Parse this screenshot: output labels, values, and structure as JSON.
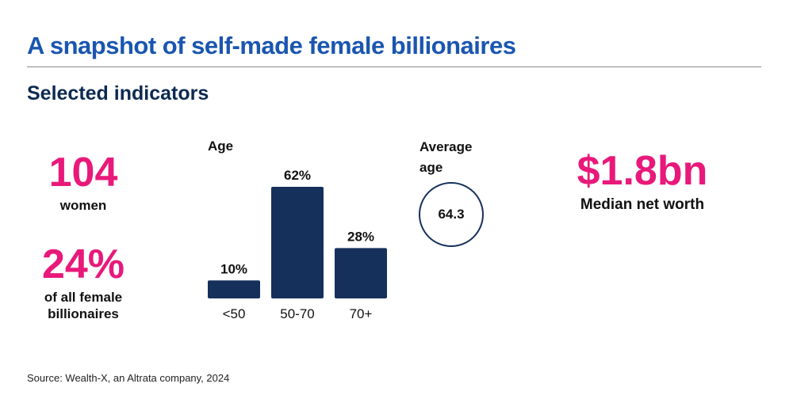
{
  "title": "A snapshot of self-made female billionaires",
  "subtitle": "Selected indicators",
  "stats": {
    "women_count": "104",
    "women_label": "women",
    "share_value": "24%",
    "share_label_line1": "of all female",
    "share_label_line2": "billionaires",
    "avg_age_heading_line1": "Average",
    "avg_age_heading_line2": "age",
    "avg_age_value": "64.3",
    "net_worth_value": "$1.8bn",
    "net_worth_label": "Median net worth"
  },
  "chart_data": {
    "type": "bar",
    "title": "Age",
    "categories": [
      "<50",
      "50-70",
      "70+"
    ],
    "values": [
      10,
      62,
      28
    ],
    "data_labels": [
      "10%",
      "62%",
      "28%"
    ],
    "ylim": [
      0,
      62
    ],
    "bar_color": "#16305c"
  },
  "source": "Source: Wealth-X, an Altrata company, 2024",
  "colors": {
    "title": "#1a56b0",
    "accent_pink": "#e8197a",
    "navy": "#16305c"
  }
}
